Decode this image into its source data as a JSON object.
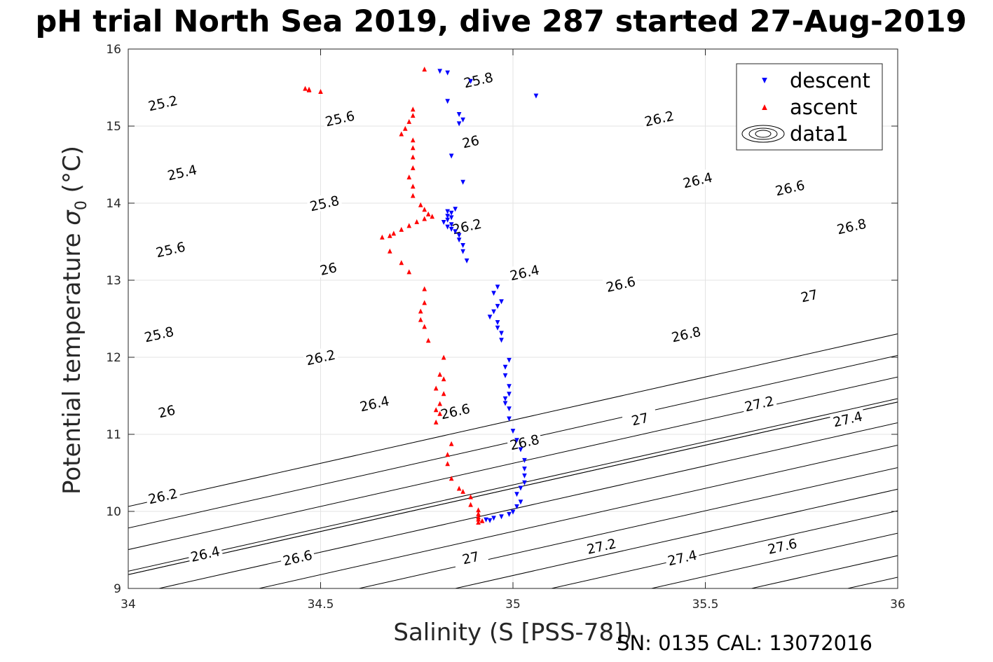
{
  "chart_data": {
    "type": "scatter",
    "title": "pH trial North Sea 2019, dive 287 started 27-Aug-2019",
    "xlabel": "Salinity (S [PSS-78])",
    "ylabel_prefix": "Potential temperature ",
    "ylabel_symbol": "σ",
    "ylabel_subscript": "0",
    "ylabel_suffix": " (°C)",
    "footer": "SN: 0135  CAL: 13072016",
    "xlim": [
      34,
      36
    ],
    "ylim": [
      9,
      16
    ],
    "xticks": [
      34,
      34.5,
      35,
      35.5,
      36
    ],
    "xtick_labels": [
      "34",
      "34.5",
      "35",
      "35.5",
      "36"
    ],
    "yticks": [
      9,
      10,
      11,
      12,
      13,
      14,
      15,
      16
    ],
    "ytick_labels": [
      "9",
      "10",
      "11",
      "12",
      "13",
      "14",
      "15",
      "16"
    ],
    "grid": true,
    "legend_position": "top-right",
    "contours": {
      "name": "data1",
      "slope_degC_per_PSU": 1.12,
      "color": "#000000",
      "lines": [
        {
          "value": 25.2,
          "s_at_9C": 33.05
        },
        {
          "value": 25.4,
          "s_at_9C": 33.3
        },
        {
          "value": 25.6,
          "s_at_9C": 33.55
        },
        {
          "value": 25.8,
          "s_at_9C": 33.8
        },
        {
          "value": 26.0,
          "s_at_9C": 33.84
        },
        {
          "value": 26.2,
          "s_at_9C": 33.84
        },
        {
          "value": 26.4,
          "s_at_9C": 34.08
        },
        {
          "value": 26.6,
          "s_at_9C": 34.34
        },
        {
          "value": 26.8,
          "s_at_9C": 34.6
        },
        {
          "value": 27.0,
          "s_at_9C": 34.85
        },
        {
          "value": 27.2,
          "s_at_9C": 35.1
        },
        {
          "value": 27.4,
          "s_at_9C": 35.36
        },
        {
          "value": 27.6,
          "s_at_9C": 35.62
        },
        {
          "value": 27.8,
          "s_at_9C": 35.87
        }
      ],
      "labels": [
        {
          "text": "25.2",
          "s": 34.09,
          "t": 15.3
        },
        {
          "text": "25.4",
          "s": 34.14,
          "t": 14.4
        },
        {
          "text": "25.6",
          "s": 34.11,
          "t": 13.4
        },
        {
          "text": "25.8",
          "s": 34.08,
          "t": 12.3
        },
        {
          "text": "26",
          "s": 34.1,
          "t": 11.3
        },
        {
          "text": "26.2",
          "s": 34.09,
          "t": 10.2
        },
        {
          "text": "26.4",
          "s": 34.2,
          "t": 9.45
        },
        {
          "text": "25.6",
          "s": 34.55,
          "t": 15.1
        },
        {
          "text": "25.8",
          "s": 34.51,
          "t": 14.0
        },
        {
          "text": "26",
          "s": 34.52,
          "t": 13.15
        },
        {
          "text": "26.2",
          "s": 34.5,
          "t": 12.0
        },
        {
          "text": "26.4",
          "s": 34.64,
          "t": 11.4
        },
        {
          "text": "26.6",
          "s": 34.44,
          "t": 9.4
        },
        {
          "text": "25.8",
          "s": 34.91,
          "t": 15.6
        },
        {
          "text": "26",
          "s": 34.89,
          "t": 14.8
        },
        {
          "text": "26.2",
          "s": 34.88,
          "t": 13.7
        },
        {
          "text": "26.4",
          "s": 35.03,
          "t": 13.1
        },
        {
          "text": "26.6",
          "s": 34.85,
          "t": 11.3
        },
        {
          "text": "26.8",
          "s": 35.03,
          "t": 10.9
        },
        {
          "text": "27",
          "s": 34.89,
          "t": 9.4
        },
        {
          "text": "26.2",
          "s": 35.38,
          "t": 15.1
        },
        {
          "text": "26.4",
          "s": 35.48,
          "t": 14.3
        },
        {
          "text": "26.6",
          "s": 35.28,
          "t": 12.95
        },
        {
          "text": "26.8",
          "s": 35.45,
          "t": 12.3
        },
        {
          "text": "27",
          "s": 35.33,
          "t": 11.2
        },
        {
          "text": "27.2",
          "s": 35.23,
          "t": 9.55
        },
        {
          "text": "26.6",
          "s": 35.72,
          "t": 14.2
        },
        {
          "text": "26.8",
          "s": 35.88,
          "t": 13.7
        },
        {
          "text": "27",
          "s": 35.77,
          "t": 12.8
        },
        {
          "text": "27.2",
          "s": 35.64,
          "t": 11.4
        },
        {
          "text": "27.4",
          "s": 35.44,
          "t": 9.4
        },
        {
          "text": "27.4",
          "s": 35.87,
          "t": 11.2
        },
        {
          "text": "27.6",
          "s": 35.7,
          "t": 9.55
        }
      ]
    },
    "series": [
      {
        "name": "descent",
        "marker": "triangle-down",
        "color": "#0000ff",
        "points": [
          [
            34.83,
            15.69
          ],
          [
            34.81,
            15.71
          ],
          [
            34.89,
            15.58
          ],
          [
            35.06,
            15.39
          ],
          [
            34.83,
            15.32
          ],
          [
            34.86,
            15.15
          ],
          [
            34.87,
            15.08
          ],
          [
            34.86,
            15.03
          ],
          [
            34.84,
            14.61
          ],
          [
            34.87,
            14.27
          ],
          [
            34.85,
            13.92
          ],
          [
            34.83,
            13.89
          ],
          [
            34.84,
            13.87
          ],
          [
            34.83,
            13.83
          ],
          [
            34.84,
            13.81
          ],
          [
            34.83,
            13.78
          ],
          [
            34.82,
            13.75
          ],
          [
            34.84,
            13.72
          ],
          [
            34.83,
            13.69
          ],
          [
            34.84,
            13.66
          ],
          [
            34.85,
            13.63
          ],
          [
            34.86,
            13.58
          ],
          [
            34.86,
            13.52
          ],
          [
            34.87,
            13.45
          ],
          [
            34.87,
            13.37
          ],
          [
            34.88,
            13.25
          ],
          [
            34.96,
            12.91
          ],
          [
            34.95,
            12.83
          ],
          [
            34.97,
            12.72
          ],
          [
            34.96,
            12.66
          ],
          [
            34.95,
            12.59
          ],
          [
            34.94,
            12.52
          ],
          [
            34.96,
            12.45
          ],
          [
            34.96,
            12.38
          ],
          [
            34.97,
            12.31
          ],
          [
            34.97,
            12.22
          ],
          [
            34.99,
            11.96
          ],
          [
            34.98,
            11.87
          ],
          [
            34.98,
            11.76
          ],
          [
            34.99,
            11.62
          ],
          [
            34.99,
            11.52
          ],
          [
            34.98,
            11.46
          ],
          [
            34.98,
            11.4
          ],
          [
            34.99,
            11.33
          ],
          [
            34.99,
            11.2
          ],
          [
            35.0,
            11.04
          ],
          [
            35.01,
            10.92
          ],
          [
            35.02,
            10.8
          ],
          [
            35.03,
            10.66
          ],
          [
            35.03,
            10.55
          ],
          [
            35.03,
            10.46
          ],
          [
            35.03,
            10.37
          ],
          [
            35.02,
            10.3
          ],
          [
            35.01,
            10.22
          ],
          [
            35.02,
            10.12
          ],
          [
            35.01,
            10.06
          ],
          [
            35.0,
            9.99
          ],
          [
            34.99,
            9.96
          ],
          [
            34.97,
            9.93
          ],
          [
            34.95,
            9.91
          ],
          [
            34.93,
            9.89
          ],
          [
            34.94,
            9.88
          ]
        ]
      },
      {
        "name": "ascent",
        "marker": "triangle-up",
        "color": "#ff0000",
        "points": [
          [
            34.46,
            15.49
          ],
          [
            34.47,
            15.48
          ],
          [
            34.47,
            15.47
          ],
          [
            34.5,
            15.45
          ],
          [
            34.77,
            15.74
          ],
          [
            34.74,
            15.22
          ],
          [
            34.74,
            15.14
          ],
          [
            34.73,
            15.06
          ],
          [
            34.72,
            14.97
          ],
          [
            34.71,
            14.9
          ],
          [
            34.74,
            14.82
          ],
          [
            34.74,
            14.72
          ],
          [
            34.74,
            14.6
          ],
          [
            34.74,
            14.46
          ],
          [
            34.73,
            14.34
          ],
          [
            34.74,
            14.22
          ],
          [
            34.74,
            14.1
          ],
          [
            34.76,
            13.98
          ],
          [
            34.77,
            13.92
          ],
          [
            34.78,
            13.86
          ],
          [
            34.79,
            13.83
          ],
          [
            34.77,
            13.8
          ],
          [
            34.75,
            13.76
          ],
          [
            34.73,
            13.71
          ],
          [
            34.71,
            13.66
          ],
          [
            34.69,
            13.61
          ],
          [
            34.68,
            13.58
          ],
          [
            34.66,
            13.56
          ],
          [
            34.68,
            13.38
          ],
          [
            34.71,
            13.23
          ],
          [
            34.73,
            13.11
          ],
          [
            34.77,
            12.89
          ],
          [
            34.77,
            12.71
          ],
          [
            34.76,
            12.6
          ],
          [
            34.76,
            12.49
          ],
          [
            34.77,
            12.4
          ],
          [
            34.78,
            12.22
          ],
          [
            34.82,
            12.0
          ],
          [
            34.81,
            11.78
          ],
          [
            34.82,
            11.72
          ],
          [
            34.8,
            11.6
          ],
          [
            34.82,
            11.53
          ],
          [
            34.81,
            11.4
          ],
          [
            34.8,
            11.32
          ],
          [
            34.81,
            11.27
          ],
          [
            34.8,
            11.16
          ],
          [
            34.84,
            10.88
          ],
          [
            34.83,
            10.74
          ],
          [
            34.83,
            10.62
          ],
          [
            34.84,
            10.43
          ],
          [
            34.86,
            10.3
          ],
          [
            34.87,
            10.26
          ],
          [
            34.89,
            10.19
          ],
          [
            34.89,
            10.09
          ],
          [
            34.91,
            10.02
          ],
          [
            34.91,
            9.97
          ],
          [
            34.91,
            9.93
          ],
          [
            34.91,
            9.9
          ],
          [
            34.92,
            9.88
          ],
          [
            34.91,
            9.86
          ]
        ]
      }
    ]
  }
}
